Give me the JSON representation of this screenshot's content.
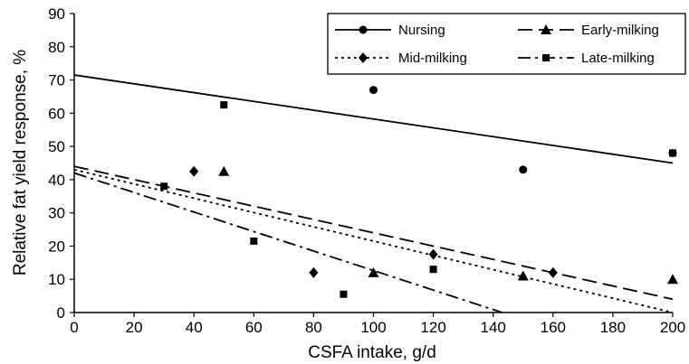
{
  "chart_data": {
    "type": "scatter",
    "title": "",
    "xlabel": "CSFA intake, g/d",
    "ylabel": "Relative fat yield response, %",
    "xlim": [
      0,
      200
    ],
    "ylim": [
      0,
      90
    ],
    "xticks": [
      0,
      20,
      40,
      60,
      80,
      100,
      120,
      140,
      160,
      180,
      200
    ],
    "yticks": [
      0,
      10,
      20,
      30,
      40,
      50,
      60,
      70,
      80,
      90
    ],
    "grid": false,
    "legend_position": "top-right",
    "series": [
      {
        "name": "Nursing",
        "marker": "circle",
        "line_style": "solid",
        "points": [
          [
            100,
            67
          ],
          [
            150,
            43
          ],
          [
            200,
            48
          ]
        ],
        "fit": [
          [
            0,
            71.5
          ],
          [
            200,
            45
          ]
        ]
      },
      {
        "name": "Early-milking",
        "marker": "triangle",
        "line_style": "long-dash",
        "points": [
          [
            50,
            42.5
          ],
          [
            100,
            12
          ],
          [
            150,
            11
          ],
          [
            200,
            10
          ]
        ],
        "fit": [
          [
            0,
            44
          ],
          [
            200,
            4
          ]
        ]
      },
      {
        "name": "Mid-milking",
        "marker": "diamond",
        "line_style": "dotted",
        "points": [
          [
            40,
            42.5
          ],
          [
            80,
            12
          ],
          [
            120,
            17.5
          ],
          [
            160,
            12
          ]
        ],
        "fit": [
          [
            0,
            43
          ],
          [
            200,
            0
          ]
        ]
      },
      {
        "name": "Late-milking",
        "marker": "square",
        "line_style": "dash-dot",
        "points": [
          [
            30,
            38
          ],
          [
            50,
            62.5
          ],
          [
            60,
            21.5
          ],
          [
            90,
            5.5
          ],
          [
            120,
            13
          ],
          [
            200,
            48
          ]
        ],
        "fit": [
          [
            0,
            42
          ],
          [
            143,
            0
          ]
        ]
      }
    ]
  }
}
